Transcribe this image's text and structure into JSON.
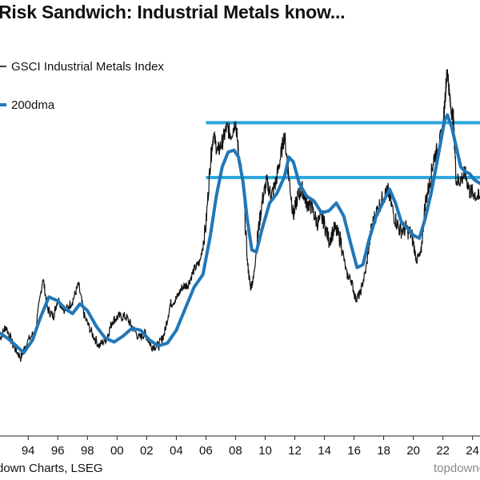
{
  "chart_data": {
    "type": "line",
    "title": "Risk Sandwich: Industrial Metals know...",
    "x_axis": {
      "range": [
        1992.1,
        2024.5
      ],
      "tick_labels": [
        "94",
        "96",
        "98",
        "00",
        "02",
        "04",
        "06",
        "08",
        "10",
        "12",
        "14",
        "16",
        "18",
        "20",
        "22",
        "24"
      ],
      "tick_years": [
        1994,
        1996,
        1998,
        2000,
        2002,
        2004,
        2006,
        2008,
        2010,
        2012,
        2014,
        2016,
        2018,
        2020,
        2022,
        2024
      ]
    },
    "y_axis": {
      "range": [
        140,
        520
      ],
      "label": ""
    },
    "colors": {
      "index": "#111111",
      "dma": "#2177b8",
      "band": "#29a6dd"
    },
    "series": [
      {
        "name": "GSCI Industrial Metals Index",
        "style": "thin-black",
        "x": [
          1992.1,
          1992.5,
          1993.0,
          1993.5,
          1993.9,
          1994.5,
          1995.0,
          1995.3,
          1995.7,
          1996.0,
          1996.5,
          1997.0,
          1997.4,
          1997.8,
          1998.3,
          1998.8,
          1999.3,
          1999.7,
          2000.1,
          2000.6,
          2001.0,
          2001.5,
          2001.9,
          2002.3,
          2002.8,
          2003.2,
          2003.6,
          2004.0,
          2004.4,
          2004.8,
          2005.2,
          2005.6,
          2006.0,
          2006.3,
          2006.5,
          2006.8,
          2007.1,
          2007.4,
          2007.7,
          2008.0,
          2008.2,
          2008.5,
          2008.8,
          2009.0,
          2009.2,
          2009.5,
          2009.8,
          2010.1,
          2010.4,
          2010.7,
          2011.0,
          2011.3,
          2011.6,
          2011.9,
          2012.2,
          2012.5,
          2012.8,
          2013.1,
          2013.5,
          2013.9,
          2014.3,
          2014.7,
          2015.1,
          2015.5,
          2015.8,
          2016.1,
          2016.4,
          2016.8,
          2017.2,
          2017.6,
          2018.0,
          2018.3,
          2018.7,
          2019.1,
          2019.5,
          2019.9,
          2020.2,
          2020.5,
          2020.8,
          2021.1,
          2021.4,
          2021.7,
          2022.0,
          2022.2,
          2022.3,
          2022.5,
          2022.7,
          2022.9,
          2023.2,
          2023.5,
          2023.8,
          2024.1,
          2024.5
        ],
        "values": [
          240,
          252,
          232,
          220,
          235,
          248,
          302,
          270,
          262,
          280,
          268,
          278,
          295,
          262,
          245,
          232,
          240,
          258,
          262,
          262,
          252,
          240,
          245,
          232,
          232,
          245,
          275,
          280,
          292,
          295,
          310,
          318,
          355,
          420,
          448,
          430,
          440,
          455,
          448,
          462,
          430,
          398,
          318,
          292,
          300,
          345,
          380,
          400,
          385,
          398,
          422,
          448,
          405,
          365,
          385,
          392,
          378,
          375,
          358,
          362,
          340,
          352,
          340,
          305,
          300,
          280,
          285,
          310,
          355,
          372,
          385,
          390,
          365,
          350,
          352,
          345,
          320,
          325,
          378,
          398,
          425,
          435,
          455,
          498,
          515,
          478,
          465,
          400,
          402,
          408,
          390,
          388,
          382
        ]
      },
      {
        "name": "200dma",
        "style": "thick-blue",
        "x": [
          1992.1,
          1992.6,
          1993.2,
          1993.7,
          1994.3,
          1994.8,
          1995.4,
          1996.0,
          1996.5,
          1997.0,
          1997.5,
          1998.0,
          1998.6,
          1999.2,
          1999.8,
          2000.4,
          2001.0,
          2001.6,
          2002.2,
          2002.8,
          2003.4,
          2004.0,
          2004.6,
          2005.2,
          2005.8,
          2006.3,
          2006.7,
          2007.1,
          2007.5,
          2007.9,
          2008.2,
          2008.5,
          2008.8,
          2009.1,
          2009.4,
          2009.8,
          2010.3,
          2010.8,
          2011.3,
          2011.6,
          2011.9,
          2012.3,
          2012.8,
          2013.3,
          2013.8,
          2014.3,
          2014.8,
          2015.3,
          2015.8,
          2016.2,
          2016.6,
          2017.0,
          2017.5,
          2018.0,
          2018.4,
          2018.8,
          2019.2,
          2019.6,
          2020.0,
          2020.4,
          2020.8,
          2021.2,
          2021.6,
          2021.9,
          2022.1,
          2022.3,
          2022.6,
          2022.9,
          2023.2,
          2023.5,
          2023.8,
          2024.1,
          2024.5
        ],
        "values": [
          245,
          240,
          232,
          225,
          238,
          260,
          282,
          278,
          270,
          265,
          275,
          268,
          252,
          240,
          236,
          242,
          250,
          248,
          238,
          232,
          235,
          248,
          270,
          292,
          305,
          345,
          385,
          415,
          430,
          432,
          425,
          400,
          360,
          330,
          328,
          352,
          378,
          388,
          405,
          425,
          420,
          398,
          385,
          380,
          368,
          370,
          378,
          365,
          335,
          312,
          315,
          340,
          365,
          380,
          392,
          378,
          358,
          352,
          345,
          342,
          362,
          388,
          420,
          445,
          462,
          468,
          455,
          435,
          415,
          410,
          408,
          402,
          398
        ]
      }
    ],
    "reference_lines": [
      {
        "name": "upper-band",
        "y_start_year": 2006.0,
        "value": 460
      },
      {
        "name": "lower-band",
        "y_start_year": 2006.0,
        "value": 404
      }
    ],
    "legend": [
      {
        "label": "GSCI Industrial Metals Index",
        "style": "thin-black"
      },
      {
        "label": "200dma",
        "style": "thick-blue"
      }
    ],
    "footer": {
      "source": "down Charts, LSEG",
      "brand": "topdownc"
    }
  }
}
